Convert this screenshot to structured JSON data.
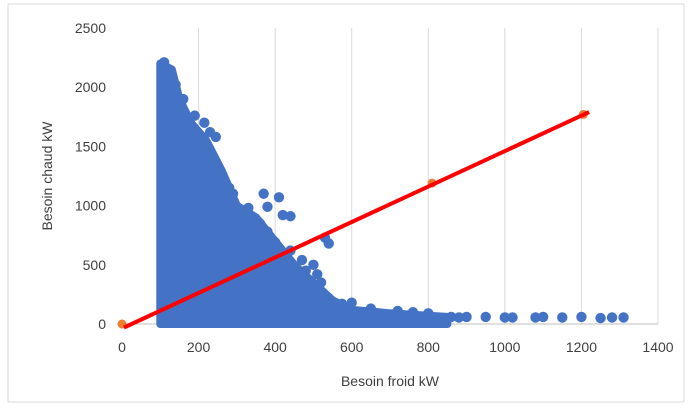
{
  "chart_data": {
    "type": "scatter",
    "xlabel": "Besoin froid kW",
    "ylabel": "Besoin chaud kW",
    "xlim": [
      0,
      1400
    ],
    "ylim": [
      0,
      2500
    ],
    "x_ticks": [
      "0",
      "200",
      "400",
      "600",
      "800",
      "1000",
      "1200",
      "1400"
    ],
    "y_ticks": [
      "0",
      "500",
      "1000",
      "1500",
      "2000",
      "2500"
    ],
    "grid": "vertical",
    "series": [
      {
        "kind": "dense-cloud",
        "color": "#4472C4",
        "envelope": [
          [
            100,
            2200
          ],
          [
            130,
            2150
          ],
          [
            150,
            1900
          ],
          [
            180,
            1700
          ],
          [
            220,
            1550
          ],
          [
            260,
            1300
          ],
          [
            300,
            1000
          ],
          [
            350,
            900
          ],
          [
            400,
            700
          ],
          [
            450,
            500
          ],
          [
            500,
            350
          ],
          [
            550,
            200
          ],
          [
            600,
            120
          ],
          [
            700,
            90
          ],
          [
            800,
            70
          ],
          [
            850,
            60
          ],
          [
            850,
            0
          ],
          [
            100,
            0
          ]
        ],
        "points": [
          [
            110,
            2210
          ],
          [
            120,
            2150
          ],
          [
            140,
            2020
          ],
          [
            160,
            1900
          ],
          [
            190,
            1760
          ],
          [
            215,
            1700
          ],
          [
            230,
            1620
          ],
          [
            245,
            1580
          ],
          [
            255,
            1300
          ],
          [
            265,
            1200
          ],
          [
            280,
            1150
          ],
          [
            290,
            1100
          ],
          [
            310,
            960
          ],
          [
            330,
            980
          ],
          [
            370,
            1100
          ],
          [
            410,
            1070
          ],
          [
            380,
            990
          ],
          [
            420,
            920
          ],
          [
            440,
            910
          ],
          [
            360,
            850
          ],
          [
            380,
            780
          ],
          [
            400,
            690
          ],
          [
            440,
            620
          ],
          [
            470,
            540
          ],
          [
            480,
            450
          ],
          [
            530,
            730
          ],
          [
            540,
            680
          ],
          [
            500,
            500
          ],
          [
            510,
            420
          ],
          [
            520,
            350
          ],
          [
            575,
            170
          ],
          [
            600,
            180
          ],
          [
            650,
            130
          ],
          [
            720,
            110
          ],
          [
            760,
            100
          ],
          [
            800,
            90
          ],
          [
            860,
            60
          ],
          [
            880,
            55
          ],
          [
            900,
            60
          ],
          [
            950,
            60
          ],
          [
            1000,
            55
          ],
          [
            1020,
            55
          ],
          [
            1080,
            55
          ],
          [
            1100,
            60
          ],
          [
            1150,
            55
          ],
          [
            1200,
            60
          ],
          [
            1250,
            50
          ],
          [
            1280,
            55
          ],
          [
            1310,
            55
          ],
          [
            290,
            150
          ],
          [
            330,
            250
          ],
          [
            300,
            400
          ],
          [
            350,
            300
          ],
          [
            600,
            40
          ],
          [
            700,
            30
          ],
          [
            760,
            20
          ],
          [
            400,
            180
          ],
          [
            450,
            250
          ],
          [
            480,
            150
          ],
          [
            420,
            330
          ]
        ]
      },
      {
        "kind": "points",
        "color": "#ED7D31",
        "points": [
          [
            0,
            0
          ],
          [
            810,
            1190
          ],
          [
            1205,
            1770
          ]
        ]
      },
      {
        "kind": "line",
        "color": "#FF0000",
        "points": [
          [
            5,
            -30
          ],
          [
            1220,
            1790
          ]
        ]
      }
    ]
  }
}
